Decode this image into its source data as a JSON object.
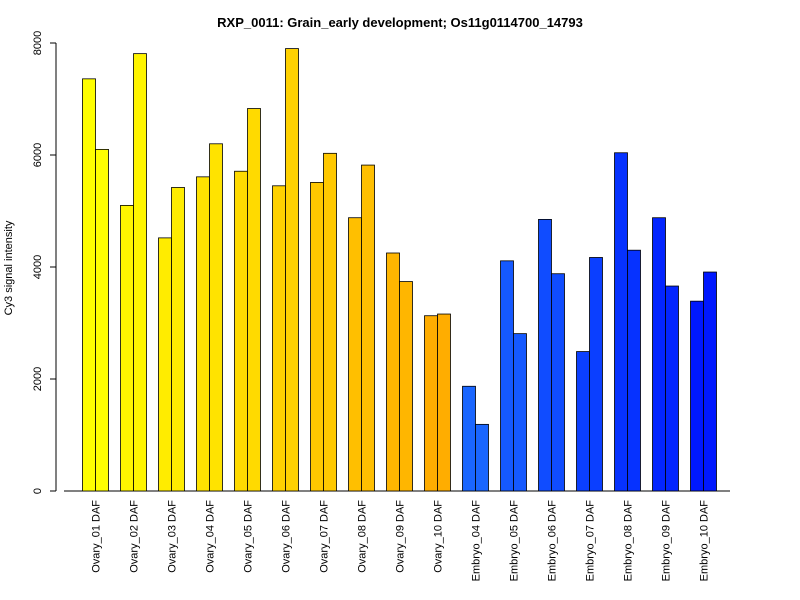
{
  "chart_data": {
    "type": "bar",
    "title": "RXP_0011: Grain_early development; Os11g0114700_14793",
    "ylabel": "Cy3 signal intensity",
    "xlabel": "",
    "ylim": [
      0,
      8000
    ],
    "yticks": [
      0,
      2000,
      4000,
      6000,
      8000
    ],
    "grid": false,
    "legend": "none",
    "categories": [
      "Ovary_01 DAF",
      "Ovary_02 DAF",
      "Ovary_03 DAF",
      "Ovary_04 DAF",
      "Ovary_05 DAF",
      "Ovary_06 DAF",
      "Ovary_07 DAF",
      "Ovary_08 DAF",
      "Ovary_09 DAF",
      "Ovary_10 DAF",
      "Embryo_04 DAF",
      "Embryo_05 DAF",
      "Embryo_06 DAF",
      "Embryo_07 DAF",
      "Embryo_08 DAF",
      "Embryo_09 DAF",
      "Embryo_10 DAF"
    ],
    "series": [
      {
        "values": [
          7360,
          5100,
          4520,
          5610,
          5710,
          5450,
          5510,
          4880,
          4250,
          3130,
          1870,
          4110,
          4850,
          2490,
          6040,
          4880,
          3390
        ]
      },
      {
        "values": [
          6100,
          7810,
          5420,
          6200,
          6830,
          7900,
          6030,
          5820,
          3740,
          3160,
          1190,
          2810,
          3880,
          4170,
          4300,
          3660,
          3910
        ]
      }
    ],
    "colors": [
      "#ffff00",
      "#fff500",
      "#ffec00",
      "#ffe300",
      "#ffda00",
      "#ffd100",
      "#ffc800",
      "#ffbf00",
      "#ffb600",
      "#ffad00",
      "#1a66ff",
      "#1559ff",
      "#104cff",
      "#0b3fff",
      "#0632ff",
      "#0325ff",
      "#0018ff"
    ]
  }
}
